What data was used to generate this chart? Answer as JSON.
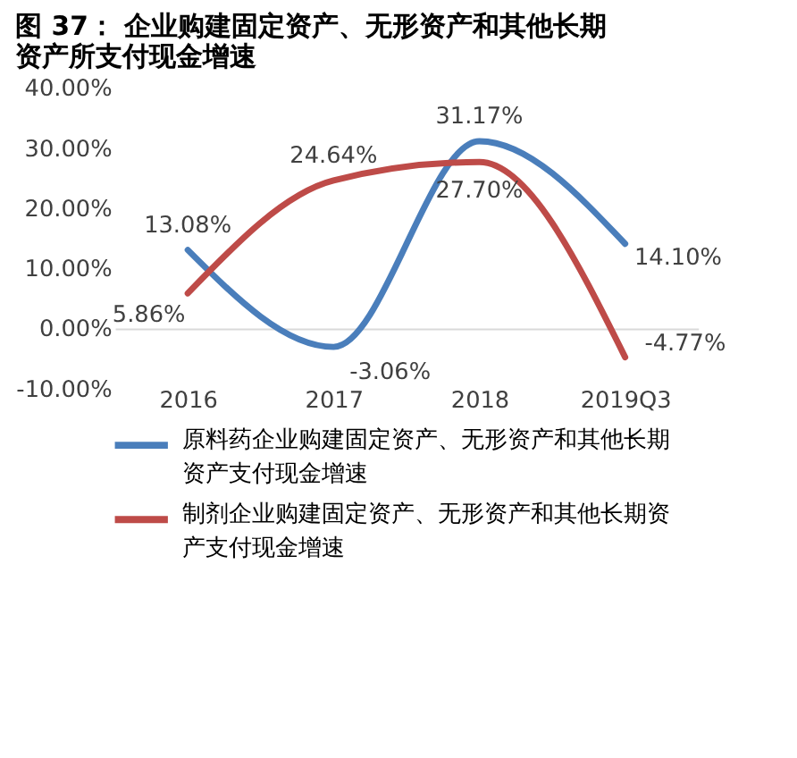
{
  "chart_data": {
    "type": "line",
    "title": "图 37： 企业购建固定资产、无形资产和其他长期资产所支付现金增速",
    "categories": [
      "2016",
      "2017",
      "2018",
      "2019Q3"
    ],
    "series": [
      {
        "name": "原料药企业购建固定资产、无形资产和其他长期资产支付现金增速",
        "color": "#4a7ebb",
        "values": [
          13.08,
          -3.06,
          31.17,
          14.1
        ],
        "value_labels": [
          "13.08%",
          "-3.06%",
          "31.17%",
          "14.10%"
        ]
      },
      {
        "name": "制剂企业购建固定资产、无形资产和其他长期资产支付现金增速",
        "color": "#be4b48",
        "values": [
          5.86,
          24.64,
          27.7,
          -4.77
        ],
        "value_labels": [
          "5.86%",
          "24.64%",
          "27.70%",
          "-4.77%"
        ]
      }
    ],
    "ylim": [
      -10,
      40
    ],
    "yticks": [
      {
        "value": -10,
        "label": "-10.00%"
      },
      {
        "value": 0,
        "label": "0.00%"
      },
      {
        "value": 10,
        "label": "10.00%"
      },
      {
        "value": 20,
        "label": "20.00%"
      },
      {
        "value": 30,
        "label": "30.00%"
      },
      {
        "value": 40,
        "label": "40.00%"
      }
    ],
    "grid": false,
    "legend": "bottom",
    "marker": "none",
    "line_style": "solid"
  }
}
